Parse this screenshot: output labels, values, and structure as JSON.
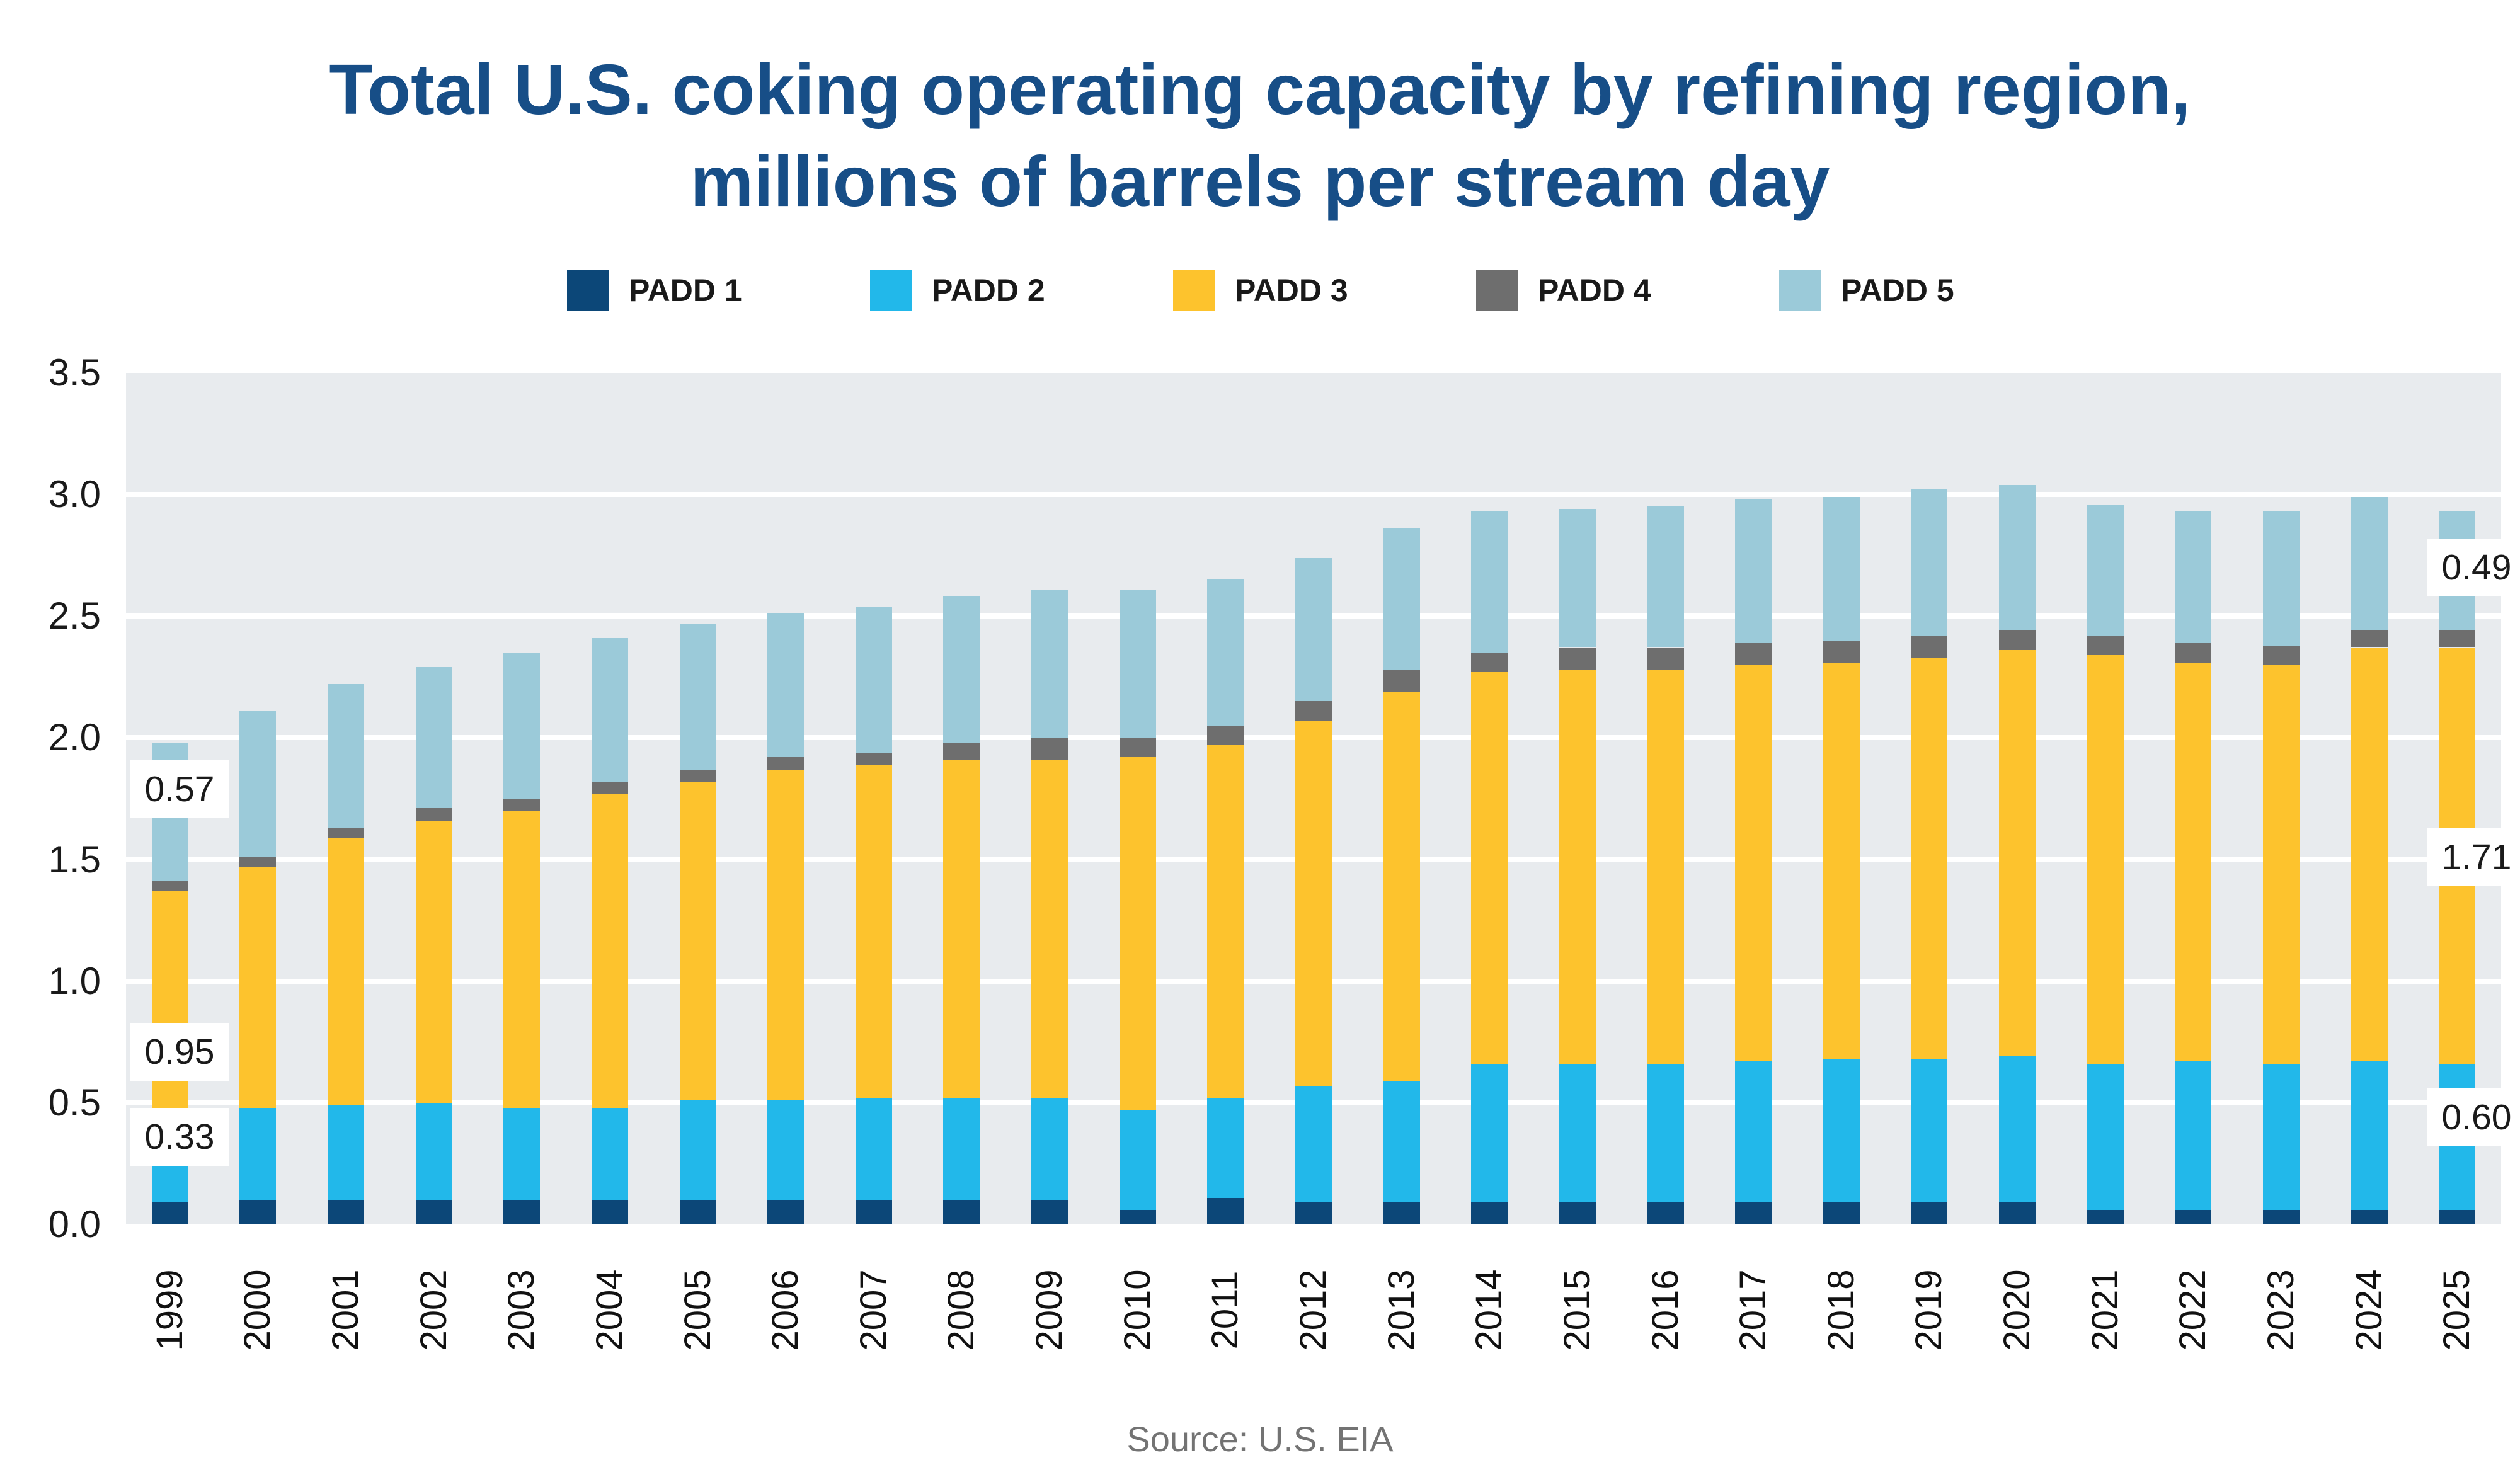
{
  "title": {
    "line1": "Total U.S. coking operating capacity by refining region,",
    "line2": "millions of barrels per stream day"
  },
  "source": {
    "text": "Source: U.S. EIA"
  },
  "colors": {
    "title_text": "#174e87",
    "plot_background": "#e8ebee",
    "gridline": "#ffffff",
    "axis_text": "#1a1a1a",
    "source_text": "#737373",
    "padd1": "#0c4778",
    "padd2": "#22b8ea",
    "padd3": "#fdc32d",
    "padd4": "#6e6e6e",
    "padd5": "#9bcad9"
  },
  "chart_data": {
    "type": "bar",
    "stacked": true,
    "title": "Total U.S. coking operating capacity by refining region, millions of barrels per stream day",
    "xlabel": "",
    "ylabel": "millions of barrels per stream day",
    "ylim": [
      0,
      3.5
    ],
    "yticks": [
      "0.0",
      "0.5",
      "1.0",
      "1.5",
      "2.0",
      "2.5",
      "3.0",
      "3.5"
    ],
    "grid": true,
    "legend_position": "top",
    "categories": [
      1999,
      2000,
      2001,
      2002,
      2003,
      2004,
      2005,
      2006,
      2007,
      2008,
      2009,
      2010,
      2011,
      2012,
      2013,
      2014,
      2015,
      2016,
      2017,
      2018,
      2019,
      2020,
      2021,
      2022,
      2023,
      2024,
      2025
    ],
    "series": [
      {
        "name": "PADD 1",
        "color": "#0c4778",
        "values": [
          0.09,
          0.1,
          0.1,
          0.1,
          0.1,
          0.1,
          0.1,
          0.1,
          0.1,
          0.1,
          0.1,
          0.06,
          0.11,
          0.09,
          0.09,
          0.09,
          0.09,
          0.09,
          0.09,
          0.09,
          0.09,
          0.09,
          0.06,
          0.06,
          0.06,
          0.06,
          0.06
        ]
      },
      {
        "name": "PADD 2",
        "color": "#22b8ea",
        "values": [
          0.33,
          0.38,
          0.39,
          0.4,
          0.38,
          0.38,
          0.41,
          0.41,
          0.42,
          0.42,
          0.42,
          0.41,
          0.41,
          0.48,
          0.5,
          0.57,
          0.57,
          0.57,
          0.58,
          0.59,
          0.59,
          0.6,
          0.6,
          0.61,
          0.6,
          0.61,
          0.6
        ]
      },
      {
        "name": "PADD 3",
        "color": "#fdc32d",
        "values": [
          0.95,
          0.99,
          1.1,
          1.16,
          1.22,
          1.29,
          1.31,
          1.36,
          1.37,
          1.39,
          1.39,
          1.45,
          1.45,
          1.5,
          1.6,
          1.61,
          1.62,
          1.62,
          1.63,
          1.63,
          1.65,
          1.67,
          1.68,
          1.64,
          1.64,
          1.7,
          1.71
        ]
      },
      {
        "name": "PADD 4",
        "color": "#6e6e6e",
        "values": [
          0.04,
          0.04,
          0.04,
          0.05,
          0.05,
          0.05,
          0.05,
          0.05,
          0.05,
          0.07,
          0.09,
          0.08,
          0.08,
          0.08,
          0.09,
          0.08,
          0.09,
          0.09,
          0.09,
          0.09,
          0.09,
          0.08,
          0.08,
          0.08,
          0.08,
          0.07,
          0.07
        ]
      },
      {
        "name": "PADD 5",
        "color": "#9bcad9",
        "values": [
          0.57,
          0.6,
          0.59,
          0.58,
          0.6,
          0.59,
          0.6,
          0.59,
          0.6,
          0.6,
          0.61,
          0.61,
          0.6,
          0.59,
          0.58,
          0.58,
          0.57,
          0.58,
          0.59,
          0.59,
          0.6,
          0.6,
          0.54,
          0.54,
          0.55,
          0.55,
          0.49
        ]
      }
    ],
    "annotations": [
      {
        "text": "0.57",
        "series": "PADD 5",
        "year": 1999,
        "y_value": 1.79,
        "side": "left"
      },
      {
        "text": "0.95",
        "series": "PADD 3",
        "year": 1999,
        "y_value": 0.71,
        "side": "left"
      },
      {
        "text": "0.33",
        "series": "PADD 2",
        "year": 1999,
        "y_value": 0.36,
        "side": "left"
      },
      {
        "text": "0.49",
        "series": "PADD 5",
        "year": 2025,
        "y_value": 2.7,
        "side": "right"
      },
      {
        "text": "1.71",
        "series": "PADD 3",
        "year": 2025,
        "y_value": 1.51,
        "side": "right"
      },
      {
        "text": "0.60",
        "series": "PADD 2",
        "year": 2025,
        "y_value": 0.44,
        "side": "right"
      }
    ]
  }
}
